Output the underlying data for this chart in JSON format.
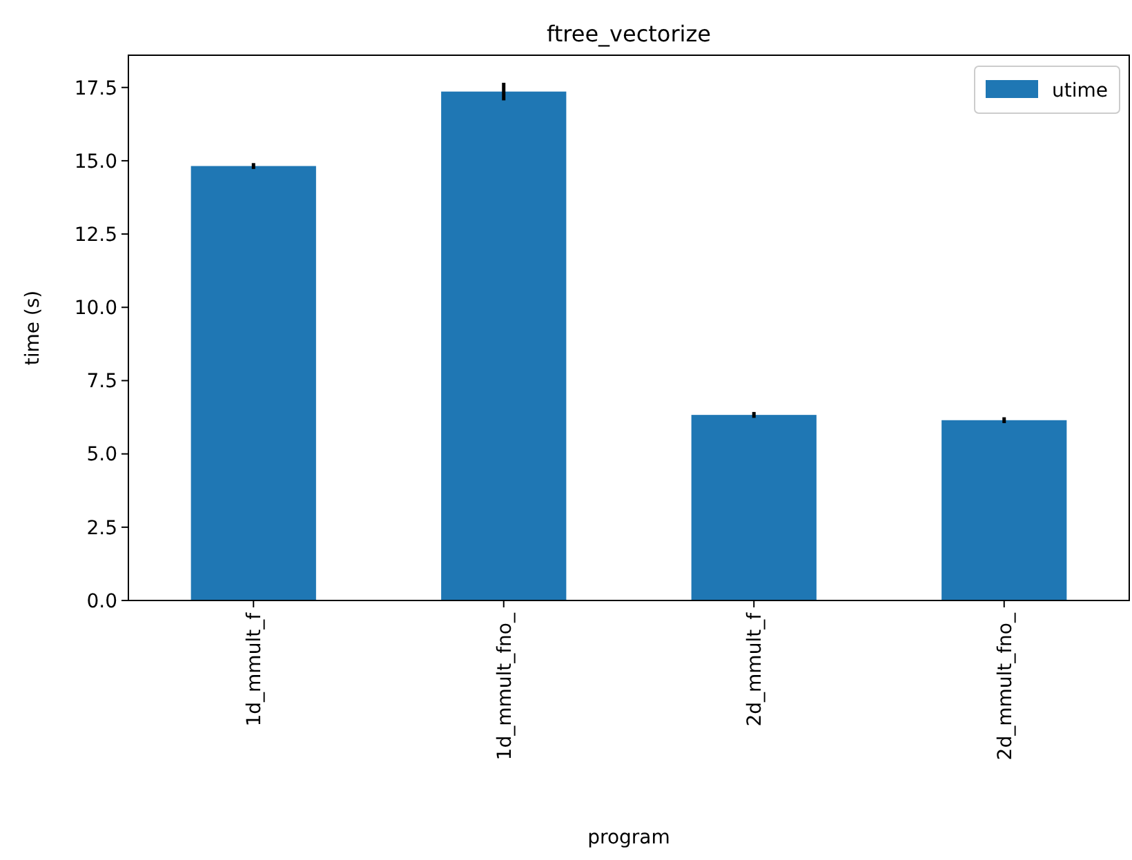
{
  "chart_data": {
    "type": "bar",
    "title": "ftree_vectorize",
    "xlabel": "program",
    "ylabel": "time (s)",
    "categories": [
      "1d_mmult_f",
      "1d_mmult_fno_",
      "2d_mmult_f",
      "2d_mmult_fno_"
    ],
    "series": [
      {
        "name": "utime",
        "color": "#1f77b4",
        "values": [
          14.82,
          17.36,
          6.33,
          6.15
        ],
        "errors": [
          0.1,
          0.3,
          0.1,
          0.1
        ]
      }
    ],
    "ylim": [
      0,
      18.6
    ],
    "yticks": [
      {
        "value": 0,
        "label": "0.0"
      },
      {
        "value": 2.5,
        "label": "2.5"
      },
      {
        "value": 5,
        "label": "5.0"
      },
      {
        "value": 7.5,
        "label": "7.5"
      },
      {
        "value": 10,
        "label": "10.0"
      },
      {
        "value": 12.5,
        "label": "12.5"
      },
      {
        "value": 15,
        "label": "15.0"
      },
      {
        "value": 17.5,
        "label": "17.5"
      }
    ],
    "legend": "top right"
  }
}
